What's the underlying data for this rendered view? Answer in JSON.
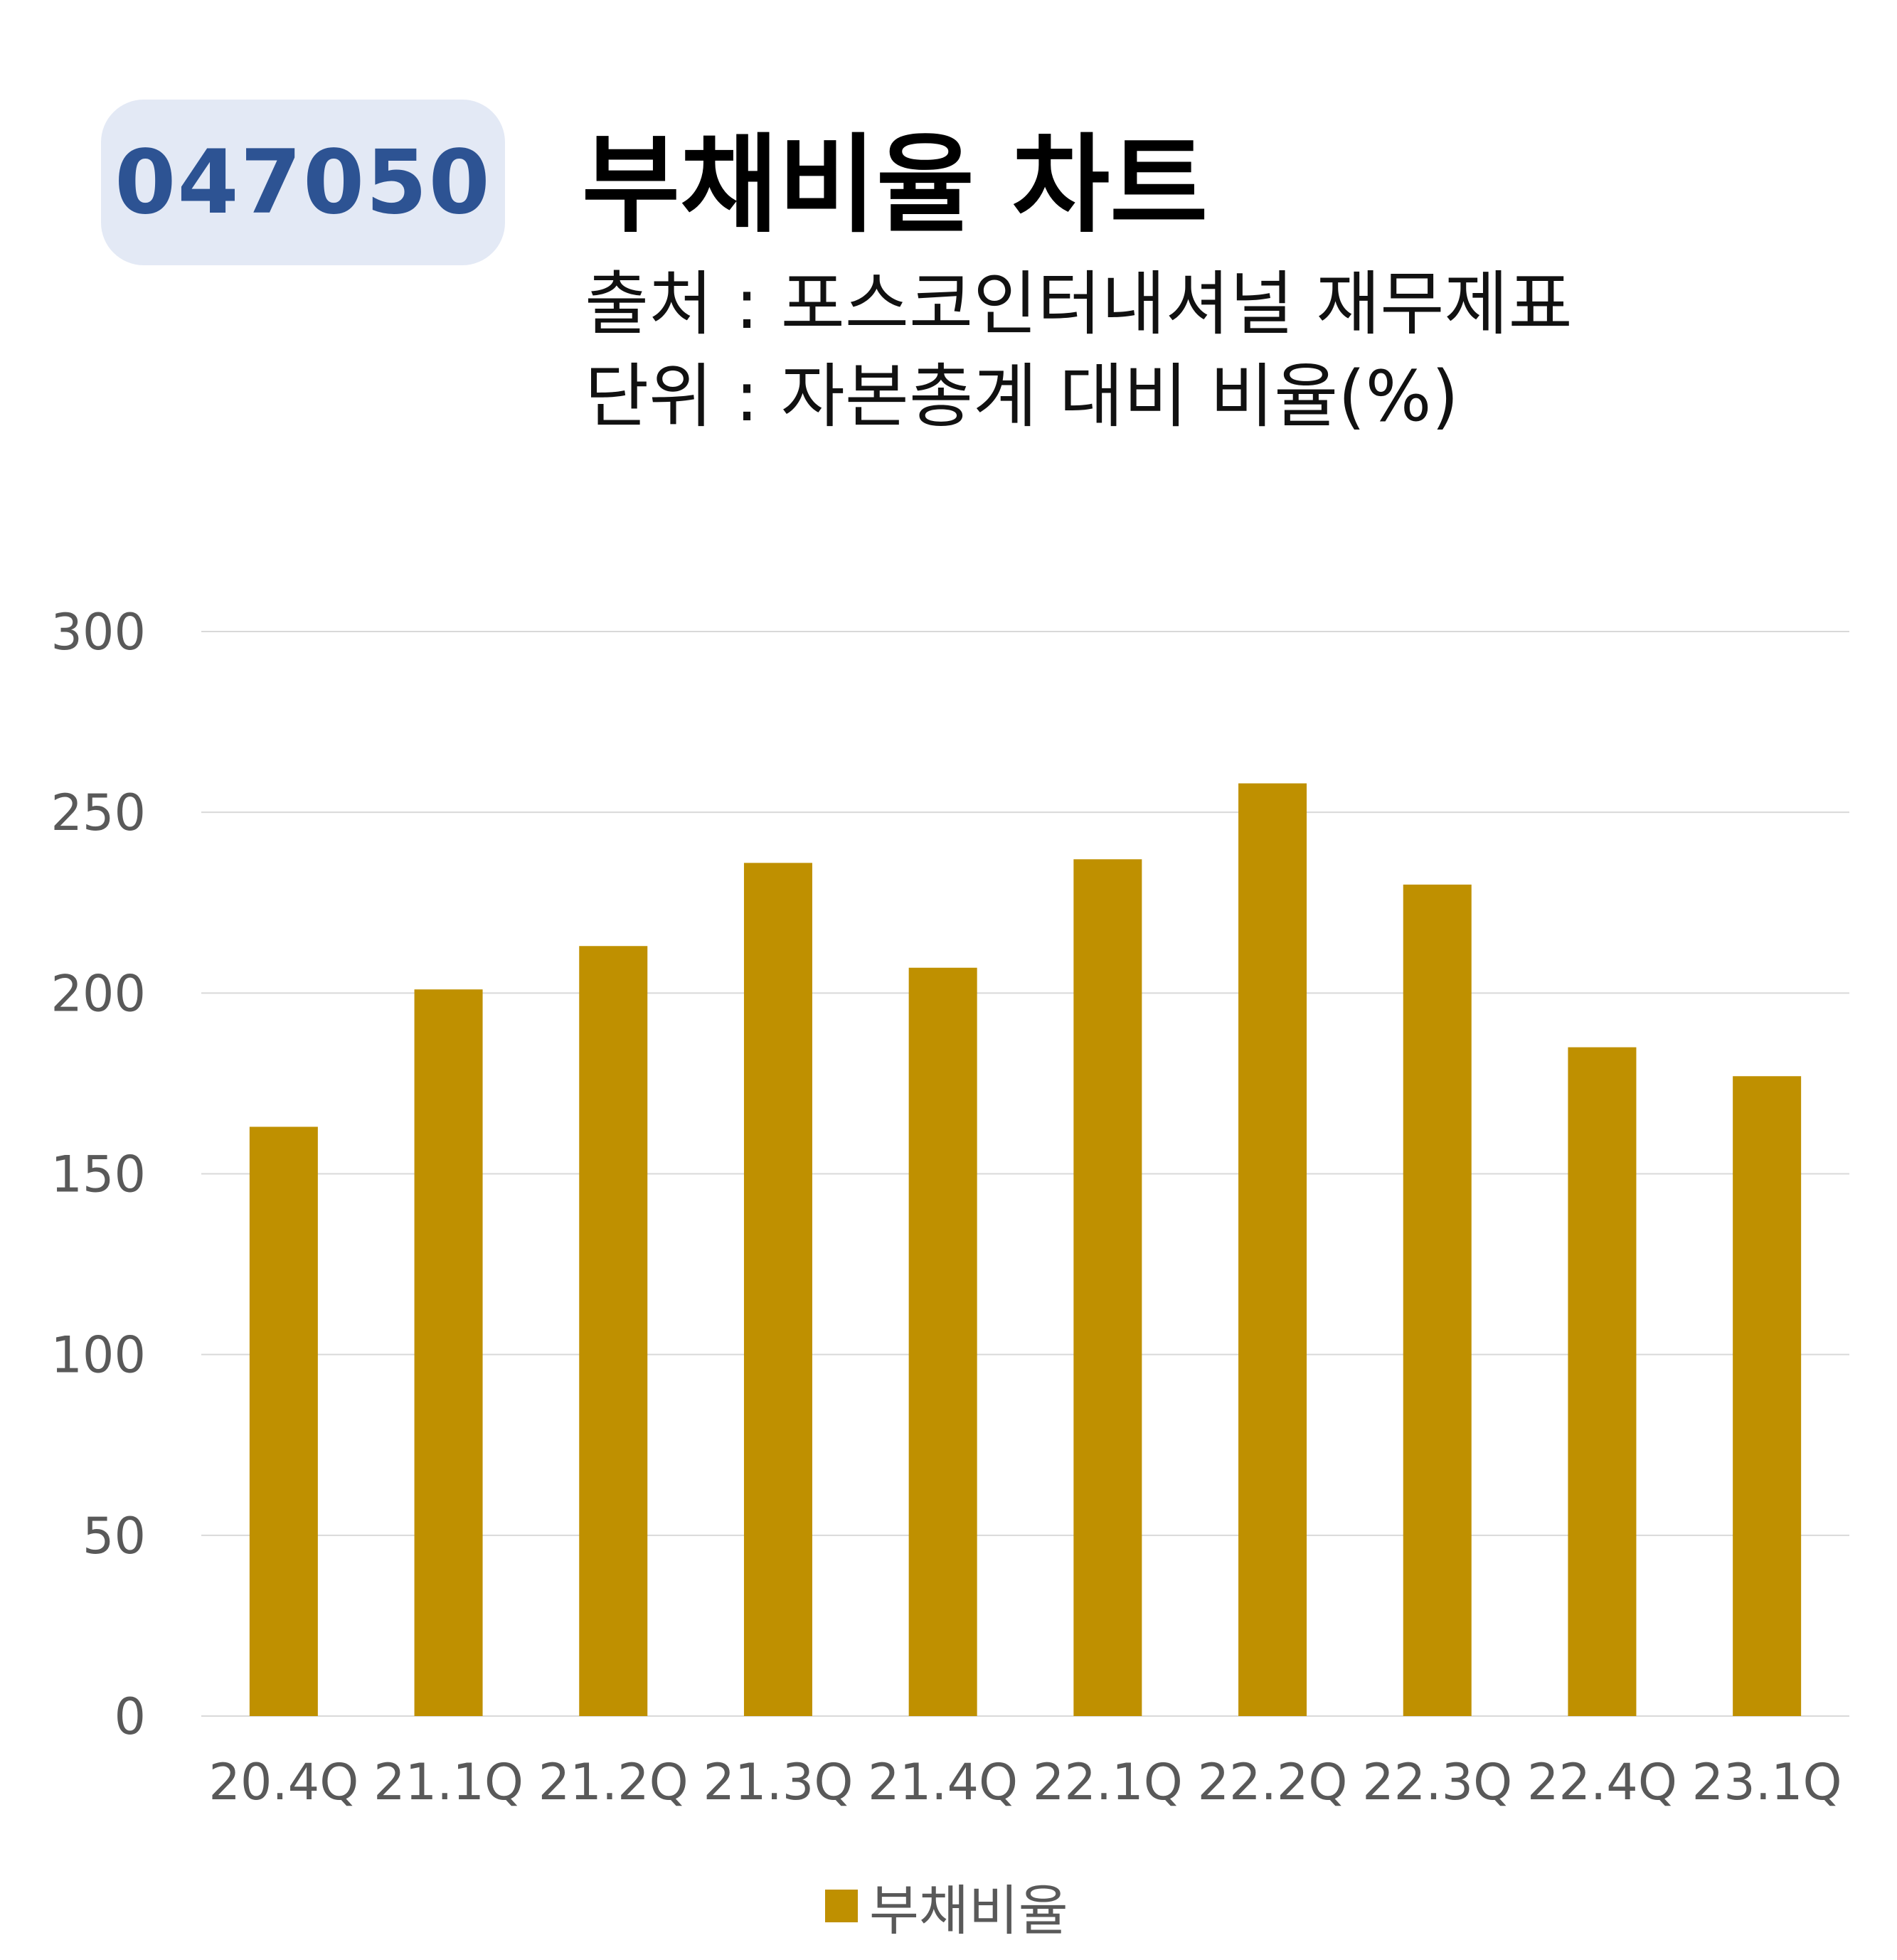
{
  "header": {
    "ticker": "047050",
    "title": "부채비율 차트",
    "source_line": "출처 : 포스코인터내셔널 재무제표",
    "unit_line": "단위 : 자본총계 대비 비율(%)"
  },
  "chart_data": {
    "type": "bar",
    "categories": [
      "20.4Q",
      "21.1Q",
      "21.2Q",
      "21.3Q",
      "21.4Q",
      "22.1Q",
      "22.2Q",
      "22.3Q",
      "22.4Q",
      "23.1Q"
    ],
    "series": [
      {
        "name": "부채비율",
        "values": [
          163,
          201,
          213,
          236,
          207,
          237,
          258,
          230,
          185,
          177
        ]
      }
    ],
    "ylim": [
      0,
      300
    ],
    "y_ticks": [
      "0",
      "50",
      "100",
      "150",
      "200",
      "250",
      "300"
    ],
    "y_tick_values": [
      0,
      50,
      100,
      150,
      200,
      250,
      300
    ],
    "grid": true,
    "legend": "bottom",
    "colors": {
      "bar": "#bf9000",
      "grid": "#d9d9d9",
      "axis_text": "#595959",
      "badge_bg": "#e3e9f5",
      "badge_text": "#2d5393"
    }
  }
}
